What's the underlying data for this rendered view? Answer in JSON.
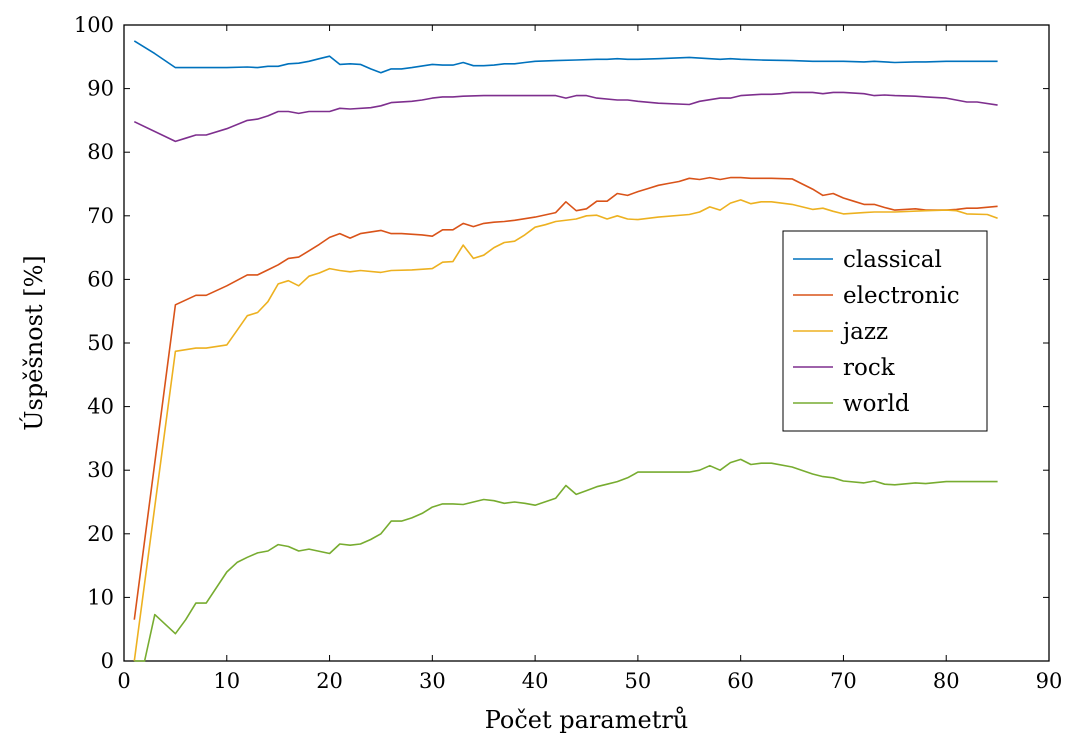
{
  "chart_data": {
    "type": "line",
    "xlabel": "Počet parametrů",
    "ylabel": "Úspěšnost [%]",
    "xlim": [
      0,
      90
    ],
    "ylim": [
      0,
      100
    ],
    "xticks": [
      "0",
      "10",
      "20",
      "30",
      "40",
      "50",
      "60",
      "70",
      "80",
      "90"
    ],
    "yticks": [
      "0",
      "10",
      "20",
      "30",
      "40",
      "50",
      "60",
      "70",
      "80",
      "90",
      "100"
    ],
    "grid": false,
    "legend_position": "center-right",
    "series": [
      {
        "name": "classical",
        "color": "#0072BD",
        "points": [
          [
            1,
            97.5
          ],
          [
            3,
            95.5
          ],
          [
            5,
            93.3
          ],
          [
            8,
            93.3
          ],
          [
            10,
            93.3
          ],
          [
            12,
            93.4
          ],
          [
            13,
            93.3
          ],
          [
            14,
            93.5
          ],
          [
            15,
            93.5
          ],
          [
            16,
            93.9
          ],
          [
            17,
            94
          ],
          [
            18,
            94.3
          ],
          [
            19,
            94.7
          ],
          [
            20,
            95.1
          ],
          [
            21,
            93.8
          ],
          [
            22,
            93.9
          ],
          [
            23,
            93.8
          ],
          [
            24,
            93.1
          ],
          [
            25,
            92.5
          ],
          [
            26,
            93.1
          ],
          [
            27,
            93.1
          ],
          [
            28,
            93.3
          ],
          [
            30,
            93.8
          ],
          [
            31,
            93.7
          ],
          [
            32,
            93.7
          ],
          [
            33,
            94.1
          ],
          [
            34,
            93.6
          ],
          [
            35,
            93.6
          ],
          [
            36,
            93.7
          ],
          [
            37,
            93.9
          ],
          [
            38,
            93.9
          ],
          [
            39,
            94.1
          ],
          [
            40,
            94.3
          ],
          [
            42,
            94.4
          ],
          [
            44,
            94.5
          ],
          [
            46,
            94.6
          ],
          [
            47,
            94.6
          ],
          [
            48,
            94.7
          ],
          [
            49,
            94.6
          ],
          [
            50,
            94.6
          ],
          [
            52,
            94.7
          ],
          [
            55,
            94.9
          ],
          [
            57,
            94.7
          ],
          [
            58,
            94.6
          ],
          [
            59,
            94.7
          ],
          [
            60,
            94.6
          ],
          [
            62,
            94.5
          ],
          [
            65,
            94.4
          ],
          [
            67,
            94.3
          ],
          [
            70,
            94.3
          ],
          [
            72,
            94.2
          ],
          [
            73,
            94.3
          ],
          [
            75,
            94.1
          ],
          [
            77,
            94.2
          ],
          [
            78,
            94.2
          ],
          [
            80,
            94.3
          ],
          [
            83,
            94.3
          ],
          [
            85,
            94.3
          ]
        ]
      },
      {
        "name": "electronic",
        "color": "#D95319",
        "points": [
          [
            1,
            6.5
          ],
          [
            5,
            56
          ],
          [
            7,
            57.5
          ],
          [
            8,
            57.5
          ],
          [
            10,
            59
          ],
          [
            12,
            60.7
          ],
          [
            13,
            60.7
          ],
          [
            14,
            61.5
          ],
          [
            15,
            62.3
          ],
          [
            16,
            63.3
          ],
          [
            17,
            63.5
          ],
          [
            18,
            64.5
          ],
          [
            19,
            65.5
          ],
          [
            20,
            66.6
          ],
          [
            21,
            67.2
          ],
          [
            22,
            66.5
          ],
          [
            23,
            67.2
          ],
          [
            25,
            67.7
          ],
          [
            26,
            67.2
          ],
          [
            27,
            67.2
          ],
          [
            29,
            67
          ],
          [
            30,
            66.8
          ],
          [
            31,
            67.8
          ],
          [
            32,
            67.8
          ],
          [
            33,
            68.8
          ],
          [
            34,
            68.3
          ],
          [
            35,
            68.8
          ],
          [
            36,
            69
          ],
          [
            37,
            69.1
          ],
          [
            38,
            69.3
          ],
          [
            40,
            69.8
          ],
          [
            42,
            70.5
          ],
          [
            43,
            72.2
          ],
          [
            44,
            70.8
          ],
          [
            45,
            71.1
          ],
          [
            46,
            72.3
          ],
          [
            47,
            72.3
          ],
          [
            48,
            73.5
          ],
          [
            49,
            73.2
          ],
          [
            50,
            73.8
          ],
          [
            51,
            74.3
          ],
          [
            52,
            74.8
          ],
          [
            53,
            75.1
          ],
          [
            54,
            75.4
          ],
          [
            55,
            75.9
          ],
          [
            56,
            75.7
          ],
          [
            57,
            76
          ],
          [
            58,
            75.7
          ],
          [
            59,
            76
          ],
          [
            60,
            76
          ],
          [
            61,
            75.9
          ],
          [
            63,
            75.9
          ],
          [
            65,
            75.8
          ],
          [
            66,
            75
          ],
          [
            67,
            74.2
          ],
          [
            68,
            73.2
          ],
          [
            69,
            73.5
          ],
          [
            70,
            72.8
          ],
          [
            71,
            72.3
          ],
          [
            72,
            71.8
          ],
          [
            73,
            71.8
          ],
          [
            74,
            71.3
          ],
          [
            75,
            70.9
          ],
          [
            77,
            71.1
          ],
          [
            78,
            70.9
          ],
          [
            80,
            70.9
          ],
          [
            81,
            71
          ],
          [
            82,
            71.2
          ],
          [
            83,
            71.2
          ],
          [
            85,
            71.5
          ]
        ]
      },
      {
        "name": "jazz",
        "color": "#EDB120",
        "points": [
          [
            1,
            0
          ],
          [
            5,
            48.7
          ],
          [
            7,
            49.2
          ],
          [
            8,
            49.2
          ],
          [
            10,
            49.7
          ],
          [
            11,
            52
          ],
          [
            12,
            54.3
          ],
          [
            13,
            54.8
          ],
          [
            14,
            56.5
          ],
          [
            15,
            59.3
          ],
          [
            16,
            59.8
          ],
          [
            17,
            59
          ],
          [
            18,
            60.5
          ],
          [
            19,
            61
          ],
          [
            20,
            61.7
          ],
          [
            21,
            61.4
          ],
          [
            22,
            61.2
          ],
          [
            23,
            61.4
          ],
          [
            25,
            61.1
          ],
          [
            26,
            61.4
          ],
          [
            28,
            61.5
          ],
          [
            30,
            61.7
          ],
          [
            31,
            62.7
          ],
          [
            32,
            62.8
          ],
          [
            33,
            65.4
          ],
          [
            34,
            63.3
          ],
          [
            35,
            63.8
          ],
          [
            36,
            65
          ],
          [
            37,
            65.8
          ],
          [
            38,
            66
          ],
          [
            39,
            67
          ],
          [
            40,
            68.2
          ],
          [
            41,
            68.6
          ],
          [
            42,
            69.1
          ],
          [
            44,
            69.5
          ],
          [
            45,
            70
          ],
          [
            46,
            70.1
          ],
          [
            47,
            69.5
          ],
          [
            48,
            70
          ],
          [
            49,
            69.5
          ],
          [
            50,
            69.4
          ],
          [
            52,
            69.8
          ],
          [
            55,
            70.2
          ],
          [
            56,
            70.6
          ],
          [
            57,
            71.4
          ],
          [
            58,
            70.9
          ],
          [
            59,
            72
          ],
          [
            60,
            72.5
          ],
          [
            61,
            71.9
          ],
          [
            62,
            72.2
          ],
          [
            63,
            72.2
          ],
          [
            65,
            71.8
          ],
          [
            66,
            71.4
          ],
          [
            67,
            71
          ],
          [
            68,
            71.2
          ],
          [
            69,
            70.7
          ],
          [
            70,
            70.3
          ],
          [
            72,
            70.5
          ],
          [
            73,
            70.6
          ],
          [
            75,
            70.6
          ],
          [
            78,
            70.8
          ],
          [
            80,
            70.9
          ],
          [
            81,
            70.8
          ],
          [
            82,
            70.3
          ],
          [
            84,
            70.2
          ],
          [
            85,
            69.6
          ]
        ]
      },
      {
        "name": "rock",
        "color": "#7E2F8E",
        "points": [
          [
            1,
            84.8
          ],
          [
            5,
            81.7
          ],
          [
            6,
            82.2
          ],
          [
            7,
            82.7
          ],
          [
            8,
            82.7
          ],
          [
            10,
            83.7
          ],
          [
            12,
            85
          ],
          [
            13,
            85.2
          ],
          [
            14,
            85.7
          ],
          [
            15,
            86.4
          ],
          [
            16,
            86.4
          ],
          [
            17,
            86.1
          ],
          [
            18,
            86.4
          ],
          [
            20,
            86.4
          ],
          [
            21,
            86.9
          ],
          [
            22,
            86.8
          ],
          [
            24,
            87
          ],
          [
            25,
            87.3
          ],
          [
            26,
            87.8
          ],
          [
            28,
            88
          ],
          [
            29,
            88.2
          ],
          [
            30,
            88.5
          ],
          [
            31,
            88.7
          ],
          [
            32,
            88.7
          ],
          [
            33,
            88.8
          ],
          [
            35,
            88.9
          ],
          [
            37,
            88.9
          ],
          [
            38,
            88.9
          ],
          [
            40,
            88.9
          ],
          [
            42,
            88.9
          ],
          [
            43,
            88.5
          ],
          [
            44,
            88.9
          ],
          [
            45,
            88.9
          ],
          [
            46,
            88.5
          ],
          [
            48,
            88.2
          ],
          [
            49,
            88.2
          ],
          [
            50,
            88
          ],
          [
            52,
            87.7
          ],
          [
            55,
            87.5
          ],
          [
            56,
            88
          ],
          [
            58,
            88.5
          ],
          [
            59,
            88.5
          ],
          [
            60,
            88.9
          ],
          [
            62,
            89.1
          ],
          [
            63,
            89.1
          ],
          [
            64,
            89.2
          ],
          [
            65,
            89.4
          ],
          [
            67,
            89.4
          ],
          [
            68,
            89.2
          ],
          [
            69,
            89.4
          ],
          [
            70,
            89.4
          ],
          [
            72,
            89.2
          ],
          [
            73,
            88.9
          ],
          [
            74,
            89
          ],
          [
            75,
            88.9
          ],
          [
            77,
            88.8
          ],
          [
            78,
            88.7
          ],
          [
            80,
            88.5
          ],
          [
            82,
            87.9
          ],
          [
            83,
            87.9
          ],
          [
            85,
            87.4
          ]
        ]
      },
      {
        "name": "world",
        "color": "#77AC30",
        "points": [
          [
            1,
            0
          ],
          [
            2,
            0
          ],
          [
            3,
            7.3
          ],
          [
            5,
            4.3
          ],
          [
            6,
            6.5
          ],
          [
            7,
            9.1
          ],
          [
            8,
            9.1
          ],
          [
            10,
            14
          ],
          [
            11,
            15.5
          ],
          [
            12,
            16.3
          ],
          [
            13,
            17
          ],
          [
            14,
            17.3
          ],
          [
            15,
            18.3
          ],
          [
            16,
            18
          ],
          [
            17,
            17.3
          ],
          [
            18,
            17.6
          ],
          [
            20,
            16.9
          ],
          [
            21,
            18.4
          ],
          [
            22,
            18.2
          ],
          [
            23,
            18.4
          ],
          [
            24,
            19.1
          ],
          [
            25,
            20
          ],
          [
            26,
            22
          ],
          [
            27,
            22
          ],
          [
            28,
            22.5
          ],
          [
            29,
            23.2
          ],
          [
            30,
            24.2
          ],
          [
            31,
            24.7
          ],
          [
            32,
            24.7
          ],
          [
            33,
            24.6
          ],
          [
            34,
            25
          ],
          [
            35,
            25.4
          ],
          [
            36,
            25.2
          ],
          [
            37,
            24.8
          ],
          [
            38,
            25
          ],
          [
            39,
            24.8
          ],
          [
            40,
            24.5
          ],
          [
            42,
            25.6
          ],
          [
            43,
            27.6
          ],
          [
            44,
            26.2
          ],
          [
            45,
            26.8
          ],
          [
            46,
            27.4
          ],
          [
            47,
            27.8
          ],
          [
            48,
            28.2
          ],
          [
            49,
            28.8
          ],
          [
            50,
            29.7
          ],
          [
            52,
            29.7
          ],
          [
            55,
            29.7
          ],
          [
            56,
            30
          ],
          [
            57,
            30.7
          ],
          [
            58,
            30
          ],
          [
            59,
            31.2
          ],
          [
            60,
            31.7
          ],
          [
            61,
            30.9
          ],
          [
            62,
            31.1
          ],
          [
            63,
            31.1
          ],
          [
            65,
            30.5
          ],
          [
            67,
            29.4
          ],
          [
            68,
            29
          ],
          [
            69,
            28.8
          ],
          [
            70,
            28.3
          ],
          [
            72,
            28
          ],
          [
            73,
            28.3
          ],
          [
            74,
            27.8
          ],
          [
            75,
            27.7
          ],
          [
            77,
            28
          ],
          [
            78,
            27.9
          ],
          [
            80,
            28.2
          ],
          [
            83,
            28.2
          ],
          [
            85,
            28.2
          ]
        ]
      }
    ]
  }
}
